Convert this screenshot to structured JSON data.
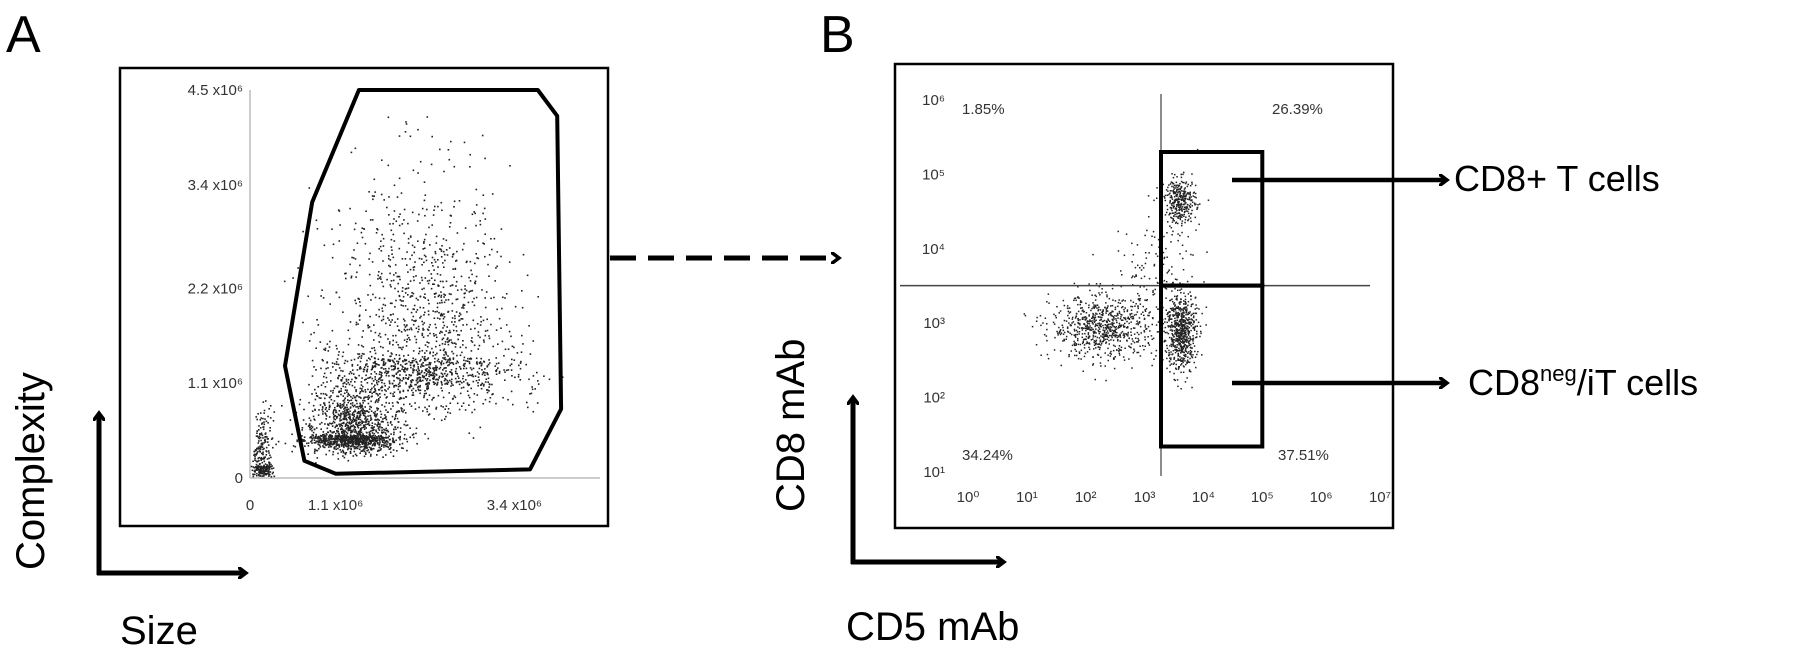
{
  "figure": {
    "panel_a_label": "A",
    "panel_b_label": "B"
  },
  "chart_data": [
    {
      "type": "scatter",
      "panel": "A",
      "title": "",
      "xlabel": "Size",
      "ylabel": "Complexity",
      "xlim": [
        0,
        4500000.0
      ],
      "ylim": [
        0,
        4500000.0
      ],
      "x_ticks": [
        {
          "value": 0,
          "label": "0"
        },
        {
          "value": 1100000,
          "label": "1.1 x10⁶"
        },
        {
          "value": 3400000,
          "label": "3.4 x10⁶"
        }
      ],
      "y_ticks": [
        {
          "value": 0,
          "label": "0"
        },
        {
          "value": 1100000,
          "label": "1.1 x10⁶"
        },
        {
          "value": 2200000,
          "label": "2.2 x10⁶"
        },
        {
          "value": 3400000,
          "label": "3.4 x10⁶"
        },
        {
          "value": 4500000,
          "label": "4.5 x10⁶"
        }
      ],
      "populations": [
        {
          "name": "",
          "center": [
            1300000,
            500000
          ],
          "spread": [
            600000,
            300000
          ],
          "count": 1400
        },
        {
          "name": "",
          "center": [
            2200000,
            1400000
          ],
          "spread": [
            1200000,
            1000000
          ],
          "count": 1600
        },
        {
          "name": "",
          "center": [
            150000,
            150000
          ],
          "spread": [
            120000,
            300000
          ],
          "count": 300
        }
      ],
      "gate": {
        "type": "polygon",
        "vertices": [
          [
            700000,
            200000
          ],
          [
            450000,
            1300000
          ],
          [
            800000,
            3200000
          ],
          [
            1400000,
            4500000
          ],
          [
            3700000,
            4500000
          ],
          [
            3950000,
            4200000
          ],
          [
            4000000,
            800000
          ],
          [
            3600000,
            100000
          ],
          [
            1100000,
            50000
          ]
        ]
      }
    },
    {
      "type": "scatter",
      "panel": "B",
      "title": "",
      "xlabel": "CD5 mAb",
      "ylabel": "CD8 mAb",
      "x_scale": "log",
      "y_scale": "log",
      "xlim": [
        1,
        10000000
      ],
      "ylim": [
        10,
        1000000
      ],
      "x_ticks": [
        {
          "value": 1,
          "label": "10⁰"
        },
        {
          "value": 10,
          "label": "10¹"
        },
        {
          "value": 100,
          "label": "10²"
        },
        {
          "value": 1000,
          "label": "10³"
        },
        {
          "value": 10000,
          "label": "10⁴"
        },
        {
          "value": 100000,
          "label": "10⁵"
        },
        {
          "value": 1000000,
          "label": "10⁶"
        },
        {
          "value": 10000000,
          "label": "10⁷"
        }
      ],
      "y_ticks": [
        {
          "value": 10,
          "label": "10¹"
        },
        {
          "value": 100,
          "label": "10²"
        },
        {
          "value": 1000,
          "label": "10³"
        },
        {
          "value": 10000,
          "label": "10⁴"
        },
        {
          "value": 100000,
          "label": "10⁵"
        },
        {
          "value": 1000000,
          "label": "10⁶"
        }
      ],
      "quadrant_threshold": {
        "x": 1900,
        "y": 3200
      },
      "quadrant_percentages": {
        "upper_left": "1.85%",
        "upper_right": "26.39%",
        "lower_left": "34.24%",
        "lower_right": "37.51%"
      },
      "populations": [
        {
          "name": "",
          "center_log": [
            2.3,
            2.95
          ],
          "spread_log": [
            0.75,
            0.35
          ],
          "count": 750
        },
        {
          "name": "",
          "center_log": [
            3.6,
            4.65
          ],
          "spread_log": [
            0.22,
            0.25
          ],
          "count": 320
        },
        {
          "name": "",
          "center_log": [
            3.6,
            2.9
          ],
          "spread_log": [
            0.22,
            0.45
          ],
          "count": 650
        },
        {
          "name": "",
          "center_log": [
            3.2,
            3.8
          ],
          "spread_log": [
            0.6,
            0.6
          ],
          "count": 120
        }
      ],
      "gate": {
        "x": [
          1900,
          100000
        ],
        "y": [
          22,
          200000
        ]
      },
      "annotations": [
        {
          "label_main": "CD8+ T cells",
          "label_sup": "",
          "label_tail": ""
        },
        {
          "label_main": "CD8",
          "label_sup": "neg",
          "label_tail": "/iT cells"
        }
      ]
    }
  ]
}
